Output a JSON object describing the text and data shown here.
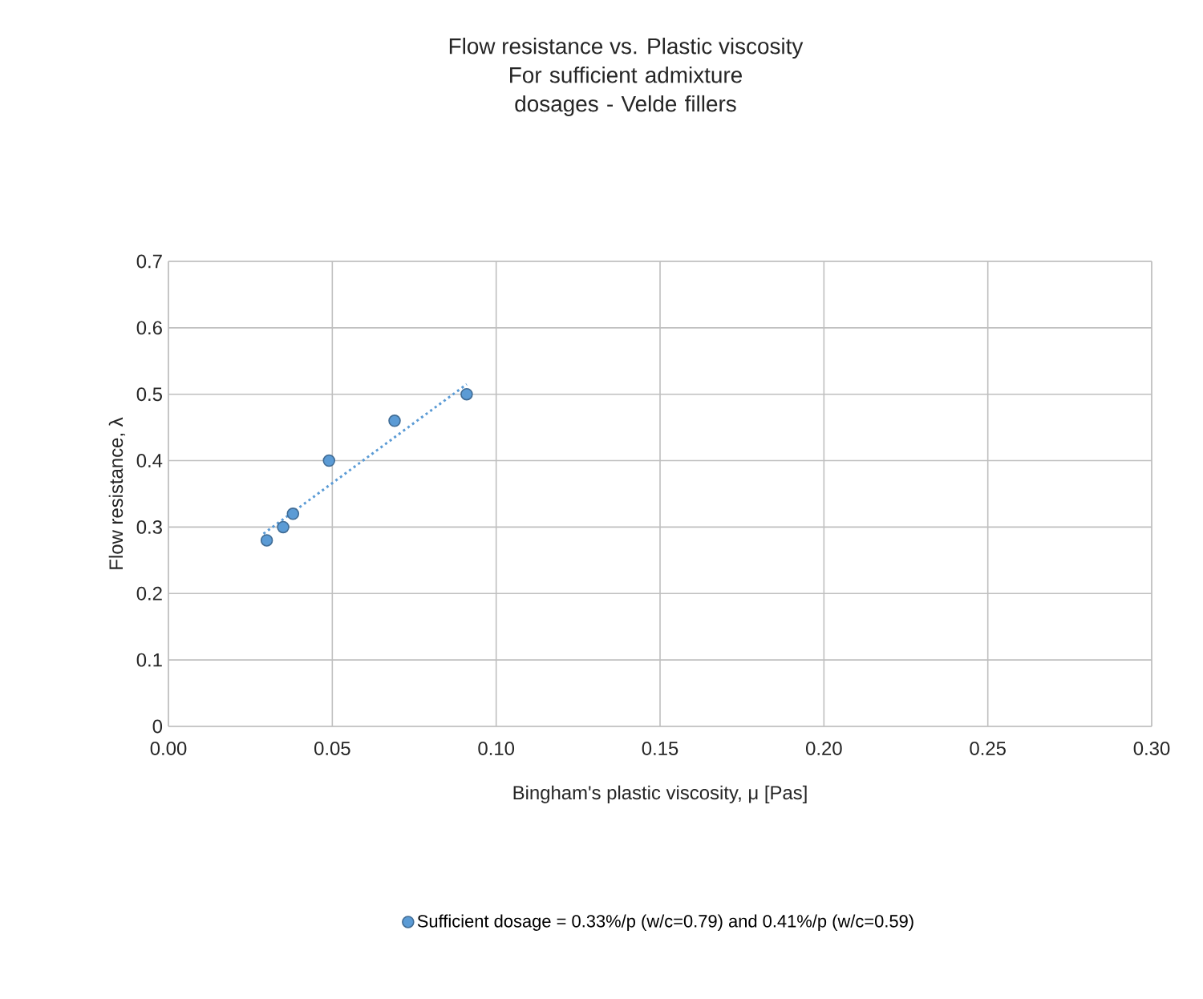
{
  "chart_data": {
    "type": "scatter",
    "title": "Flow resistance vs. Plastic viscosity",
    "subtitle": "For sufficient admixture dosages - Velde fillers",
    "xlabel": "Bingham's plastic viscosity, μ [Pas]",
    "ylabel": "Flow resistance, λ",
    "xlim": [
      0,
      0.3
    ],
    "xticks": [
      {
        "value": 0,
        "label": "0.00"
      },
      {
        "value": 0.05,
        "label": "0.05"
      },
      {
        "value": 0.1,
        "label": "0.10"
      },
      {
        "value": 0.15,
        "label": "0.15"
      },
      {
        "value": 0.2,
        "label": "0.20"
      },
      {
        "value": 0.25,
        "label": "0.25"
      },
      {
        "value": 0.3,
        "label": "0.30"
      }
    ],
    "ylim": [
      0,
      0.7
    ],
    "yticks": [
      0,
      0.1,
      0.2,
      0.3,
      0.4,
      0.5,
      0.6,
      0.7
    ],
    "grid": true,
    "legend": "bottom",
    "marker": "circle",
    "series": [
      {
        "name": "Sufficient dosage = 0.33%/p (w/c=0.79) and 0.41%/p (w/c=0.59)",
        "color": "#5b9bd5",
        "x": [
          0.03,
          0.035,
          0.038,
          0.049,
          0.069,
          0.091
        ],
        "values": [
          0.28,
          0.3,
          0.32,
          0.4,
          0.46,
          0.5
        ]
      },
      {
        "type": "line",
        "color": "#5b9bd5",
        "line_style": "dotted",
        "marker": "none",
        "x": [
          0.029,
          0.091
        ],
        "values": [
          0.29,
          0.515
        ]
      }
    ]
  }
}
